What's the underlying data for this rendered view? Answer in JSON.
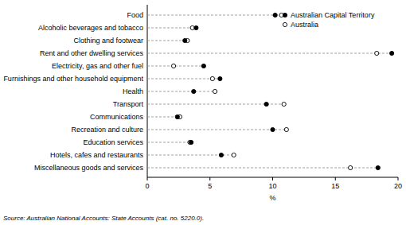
{
  "chart_data": {
    "type": "dot",
    "orientation": "horizontal",
    "categories": [
      "Food",
      "Alcoholic beverages and tobacco",
      "Clothing and footwear",
      "Rent and other dwelling services",
      "Electricity, gas and other fuel",
      "Furnishings and other household equipment",
      "Health",
      "Transport",
      "Communications",
      "Recreation and culture",
      "Education services",
      "Hotels, cafes and restaurants",
      "Miscellaneous goods and services"
    ],
    "series": [
      {
        "name": "Australian Capital Territory",
        "color": "#000000",
        "marker": "circle",
        "values": [
          10.2,
          3.9,
          3.0,
          19.5,
          4.5,
          5.8,
          3.7,
          9.5,
          2.4,
          10.0,
          3.5,
          5.9,
          18.4
        ]
      },
      {
        "name": "Australia",
        "color": "#000000",
        "marker": "circle-open",
        "values": [
          10.7,
          3.6,
          3.2,
          18.3,
          2.1,
          5.2,
          5.4,
          10.9,
          2.6,
          11.1,
          3.4,
          6.9,
          16.2
        ]
      }
    ],
    "xlim": [
      0,
      20
    ],
    "xticks": [
      0,
      5,
      10,
      15,
      20
    ],
    "xlabel": "%",
    "legend": "top-right",
    "source": "Source: Australian National Accounts: State Accounts (cat. no. 5220.0)."
  }
}
